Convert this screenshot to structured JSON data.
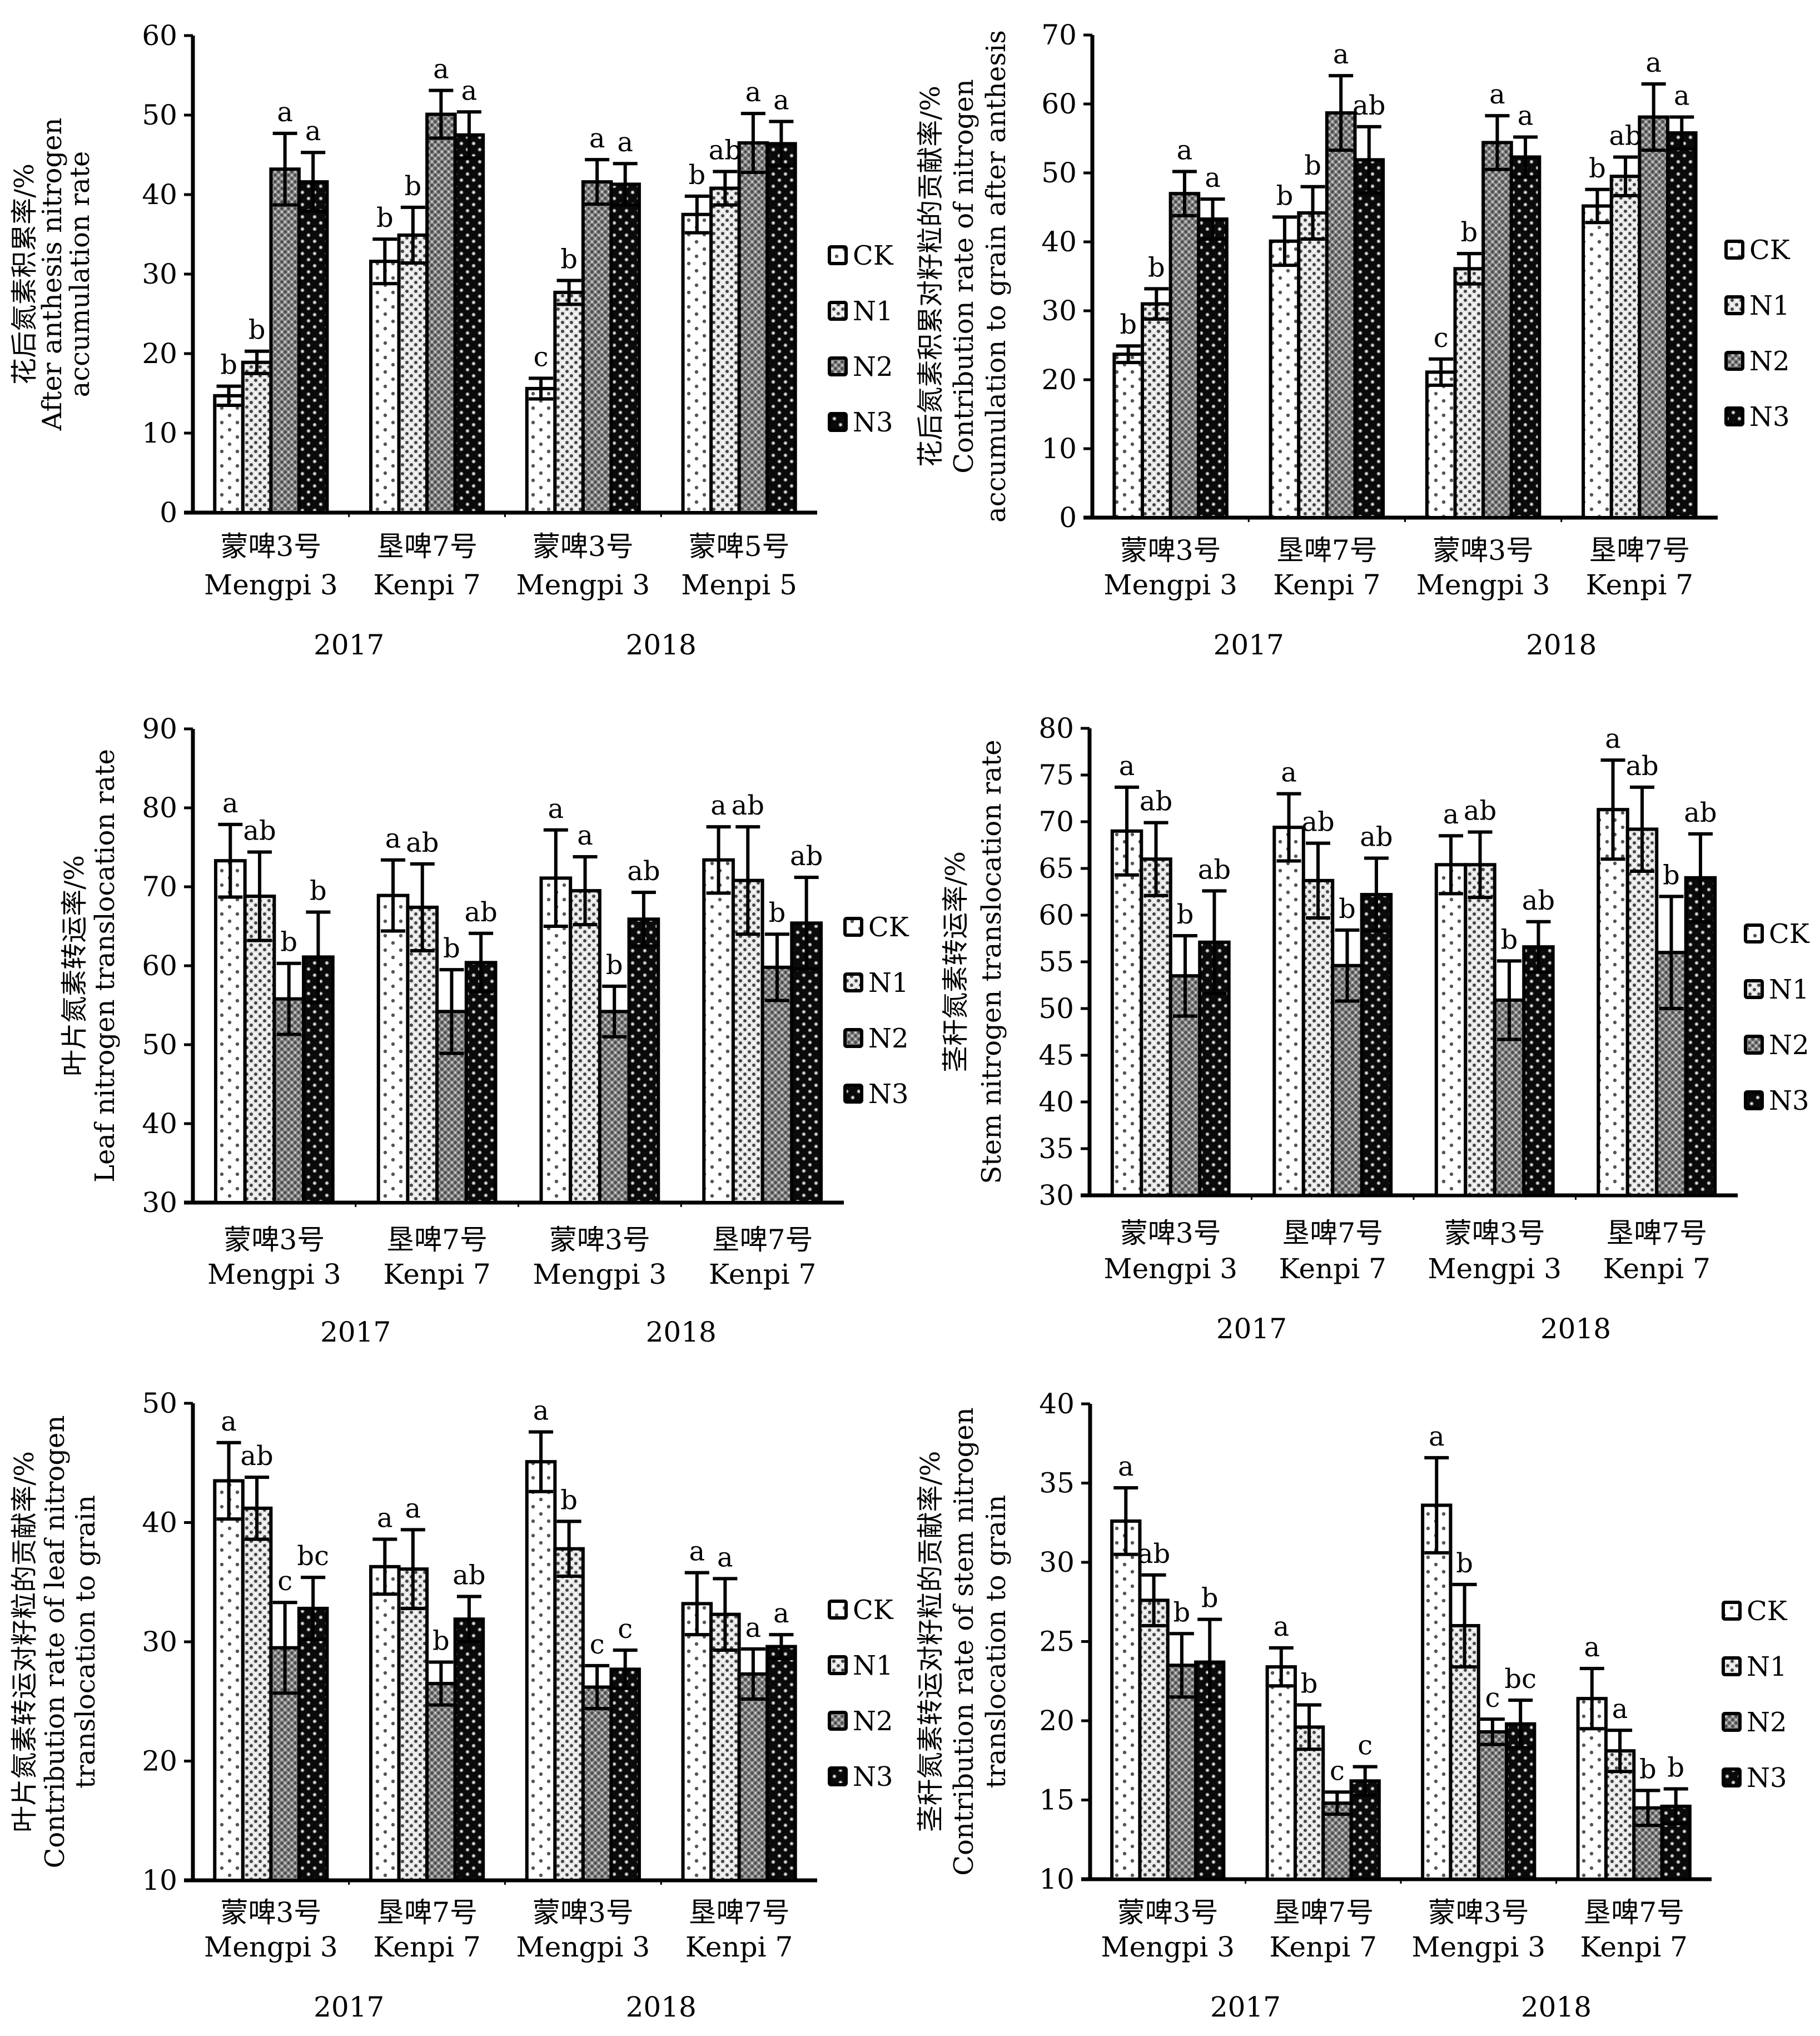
{
  "figure": {
    "legend_entries": [
      "CK",
      "N1",
      "N2",
      "N3"
    ],
    "years": [
      "2017",
      "2018"
    ]
  },
  "chart_data": [
    {
      "type": "bar",
      "id": "after-anthesis-accumulation",
      "ylabel": [
        "花后氮素积累率/%",
        "After anthesis nitrogen",
        "accumulation rate"
      ],
      "ylim": [
        0,
        60
      ],
      "yticks": [
        0,
        10,
        20,
        30,
        40,
        50,
        60
      ],
      "categories": [
        {
          "cn": "蒙啤3号",
          "en": "Mengpi 3",
          "year": "2017"
        },
        {
          "cn": "垦啤7号",
          "en": "Kenpi 7",
          "year": "2017"
        },
        {
          "cn": "蒙啤3号",
          "en": "Mengpi 3",
          "year": "2018"
        },
        {
          "cn": "蒙啤5号",
          "en": "Menpi 5",
          "year": "2018"
        }
      ],
      "series": [
        {
          "name": "CK",
          "values": [
            14.7,
            31.6,
            15.6,
            37.5
          ],
          "errors": [
            1.2,
            2.8,
            1.3,
            2.3
          ],
          "sig": [
            "b",
            "b",
            "c",
            "b"
          ]
        },
        {
          "name": "N1",
          "values": [
            18.9,
            34.9,
            27.7,
            40.8
          ],
          "errors": [
            1.4,
            3.5,
            1.5,
            2.1
          ],
          "sig": [
            "b",
            "b",
            "b",
            "ab"
          ]
        },
        {
          "name": "N2",
          "values": [
            43.2,
            50.1,
            41.6,
            46.5
          ],
          "errors": [
            4.5,
            3.0,
            2.8,
            3.7
          ],
          "sig": [
            "a",
            "a",
            "a",
            "a"
          ]
        },
        {
          "name": "N3",
          "values": [
            41.6,
            47.5,
            41.3,
            46.4
          ],
          "errors": [
            3.7,
            2.9,
            2.6,
            2.8
          ],
          "sig": [
            "a",
            "a",
            "a",
            "a"
          ]
        }
      ],
      "legend_position": "right"
    },
    {
      "type": "bar",
      "id": "after-anthesis-contribution",
      "ylabel": [
        "花后氮素积累对籽粒的贡献率/%",
        "Contribution rate of nitrogen",
        "accumulation to grain after anthesis"
      ],
      "ylim": [
        0,
        70
      ],
      "yticks": [
        0,
        10,
        20,
        30,
        40,
        50,
        60,
        70
      ],
      "categories": [
        {
          "cn": "蒙啤3号",
          "en": "Mengpi 3",
          "year": "2017"
        },
        {
          "cn": "垦啤7号",
          "en": "Kenpi 7",
          "year": "2017"
        },
        {
          "cn": "蒙啤3号",
          "en": "Mengpi 3",
          "year": "2018"
        },
        {
          "cn": "垦啤7号",
          "en": "Kenpi 7",
          "year": "2018"
        }
      ],
      "series": [
        {
          "name": "CK",
          "values": [
            23.7,
            40.1,
            21.1,
            45.2
          ],
          "errors": [
            1.2,
            3.5,
            1.9,
            2.4
          ],
          "sig": [
            "b",
            "b",
            "c",
            "b"
          ]
        },
        {
          "name": "N1",
          "values": [
            31.0,
            44.2,
            36.1,
            49.5
          ],
          "errors": [
            2.2,
            3.8,
            2.2,
            2.8
          ],
          "sig": [
            "b",
            "b",
            "b",
            "ab"
          ]
        },
        {
          "name": "N2",
          "values": [
            47.0,
            58.7,
            54.4,
            58.1
          ],
          "errors": [
            3.2,
            5.4,
            3.9,
            4.8
          ],
          "sig": [
            "a",
            "a",
            "a",
            "a"
          ]
        },
        {
          "name": "N3",
          "values": [
            43.3,
            51.9,
            52.3,
            55.8
          ],
          "errors": [
            2.9,
            4.8,
            2.9,
            2.3
          ],
          "sig": [
            "a",
            "ab",
            "a",
            "a"
          ]
        }
      ],
      "legend_position": "right"
    },
    {
      "type": "bar",
      "id": "leaf-translocation",
      "ylabel": [
        "叶片氮素转运率/%",
        "Leaf nitrogen translocation rate"
      ],
      "ylim": [
        30,
        90
      ],
      "yticks": [
        30,
        40,
        50,
        60,
        70,
        80,
        90
      ],
      "categories": [
        {
          "cn": "蒙啤3号",
          "en": "Mengpi 3",
          "year": "2017"
        },
        {
          "cn": "垦啤7号",
          "en": "Kenpi 7",
          "year": "2017"
        },
        {
          "cn": "蒙啤3号",
          "en": "Mengpi 3",
          "year": "2018"
        },
        {
          "cn": "垦啤7号",
          "en": "Kenpi 7",
          "year": "2018"
        }
      ],
      "series": [
        {
          "name": "CK",
          "values": [
            73.3,
            68.9,
            71.1,
            73.4
          ],
          "errors": [
            4.6,
            4.5,
            6.1,
            4.2
          ],
          "sig": [
            "a",
            "a",
            "a",
            "a"
          ]
        },
        {
          "name": "N1",
          "values": [
            68.8,
            67.4,
            69.5,
            70.8
          ],
          "errors": [
            5.6,
            5.5,
            4.3,
            6.8
          ],
          "sig": [
            "ab",
            "ab",
            "a",
            "ab"
          ]
        },
        {
          "name": "N2",
          "values": [
            55.8,
            54.2,
            54.2,
            59.8
          ],
          "errors": [
            4.5,
            5.3,
            3.2,
            4.2
          ],
          "sig": [
            "b",
            "b",
            "b",
            "b"
          ]
        },
        {
          "name": "N3",
          "values": [
            61.1,
            60.4,
            65.9,
            65.4
          ],
          "errors": [
            5.7,
            3.7,
            3.4,
            5.8
          ],
          "sig": [
            "b",
            "ab",
            "ab",
            "ab"
          ]
        }
      ],
      "legend_position": "right"
    },
    {
      "type": "bar",
      "id": "stem-translocation",
      "ylabel": [
        "茎秆氮素转运率/%",
        "Stem nitrogen translocation rate"
      ],
      "ylim": [
        30,
        80
      ],
      "yticks": [
        30,
        35,
        40,
        45,
        50,
        55,
        60,
        65,
        70,
        75,
        80
      ],
      "categories": [
        {
          "cn": "蒙啤3号",
          "en": "Mengpi 3",
          "year": "2017"
        },
        {
          "cn": "垦啤7号",
          "en": "Kenpi 7",
          "year": "2017"
        },
        {
          "cn": "蒙啤3号",
          "en": "Mengpi 3",
          "year": "2018"
        },
        {
          "cn": "垦啤7号",
          "en": "Kenpi 7",
          "year": "2018"
        }
      ],
      "series": [
        {
          "name": "CK",
          "values": [
            69.0,
            69.4,
            65.4,
            71.3
          ],
          "errors": [
            4.7,
            3.6,
            3.1,
            5.3
          ],
          "sig": [
            "a",
            "a",
            "a",
            "a"
          ]
        },
        {
          "name": "N1",
          "values": [
            66.0,
            63.7,
            65.4,
            69.2
          ],
          "errors": [
            3.9,
            4.0,
            3.5,
            4.5
          ],
          "sig": [
            "ab",
            "ab",
            "ab",
            "ab"
          ]
        },
        {
          "name": "N2",
          "values": [
            53.5,
            54.6,
            50.9,
            56.0
          ],
          "errors": [
            4.3,
            3.8,
            4.2,
            6.0
          ],
          "sig": [
            "b",
            "b",
            "b",
            "b"
          ]
        },
        {
          "name": "N3",
          "values": [
            57.1,
            62.2,
            56.6,
            64.0
          ],
          "errors": [
            5.5,
            3.9,
            2.7,
            4.7
          ],
          "sig": [
            "ab",
            "ab",
            "ab",
            "ab"
          ]
        }
      ],
      "legend_position": "right"
    },
    {
      "type": "bar",
      "id": "leaf-contribution",
      "ylabel": [
        "叶片氮素转运对籽粒的贡献率/%",
        "Contribution rate of leaf nitrogen",
        "translocation to grain"
      ],
      "ylim": [
        10,
        50
      ],
      "yticks": [
        10,
        20,
        30,
        40,
        50
      ],
      "categories": [
        {
          "cn": "蒙啤3号",
          "en": "Mengpi 3",
          "year": "2017"
        },
        {
          "cn": "垦啤7号",
          "en": "Kenpi 7",
          "year": "2017"
        },
        {
          "cn": "蒙啤3号",
          "en": "Mengpi 3",
          "year": "2018"
        },
        {
          "cn": "垦啤7号",
          "en": "Kenpi 7",
          "year": "2018"
        }
      ],
      "series": [
        {
          "name": "CK",
          "values": [
            43.5,
            36.3,
            45.1,
            33.2
          ],
          "errors": [
            3.2,
            2.3,
            2.5,
            2.6
          ],
          "sig": [
            "a",
            "a",
            "a",
            "a"
          ]
        },
        {
          "name": "N1",
          "values": [
            41.2,
            36.1,
            37.8,
            32.3
          ],
          "errors": [
            2.6,
            3.3,
            2.3,
            3.0
          ],
          "sig": [
            "ab",
            "a",
            "b",
            "a"
          ]
        },
        {
          "name": "N2",
          "values": [
            29.5,
            26.5,
            26.2,
            27.3
          ],
          "errors": [
            3.8,
            1.8,
            1.8,
            2.1
          ],
          "sig": [
            "c",
            "b",
            "c",
            "a"
          ]
        },
        {
          "name": "N3",
          "values": [
            32.8,
            31.9,
            27.7,
            29.6
          ],
          "errors": [
            2.6,
            1.9,
            1.6,
            1.0
          ],
          "sig": [
            "bc",
            "ab",
            "c",
            "a"
          ]
        }
      ],
      "legend_position": "right"
    },
    {
      "type": "bar",
      "id": "stem-contribution",
      "ylabel": [
        "茎秆氮素转运对籽粒的贡献率/%",
        "Contribution rate of stem nitrogen",
        "translocation to grain"
      ],
      "ylim": [
        10,
        40
      ],
      "yticks": [
        10,
        15,
        20,
        25,
        30,
        35,
        40
      ],
      "categories": [
        {
          "cn": "蒙啤3号",
          "en": "Mengpi 3",
          "year": "2017"
        },
        {
          "cn": "垦啤7号",
          "en": "Kenpi 7",
          "year": "2017"
        },
        {
          "cn": "蒙啤3号",
          "en": "Mengpi 3",
          "year": "2018"
        },
        {
          "cn": "垦啤7号",
          "en": "Kenpi 7",
          "year": "2018"
        }
      ],
      "series": [
        {
          "name": "CK",
          "values": [
            32.6,
            23.4,
            33.6,
            21.4
          ],
          "errors": [
            2.1,
            1.2,
            3.0,
            1.9
          ],
          "sig": [
            "a",
            "a",
            "a",
            "a"
          ]
        },
        {
          "name": "N1",
          "values": [
            27.6,
            19.6,
            26.0,
            18.1
          ],
          "errors": [
            1.6,
            1.4,
            2.6,
            1.3
          ],
          "sig": [
            "ab",
            "b",
            "b",
            "a"
          ]
        },
        {
          "name": "N2",
          "values": [
            23.5,
            14.8,
            19.3,
            14.5
          ],
          "errors": [
            2.0,
            0.7,
            0.8,
            1.1
          ],
          "sig": [
            "b",
            "c",
            "c",
            "b"
          ]
        },
        {
          "name": "N3",
          "values": [
            23.7,
            16.2,
            19.8,
            14.6
          ],
          "errors": [
            2.7,
            0.9,
            1.5,
            1.1
          ],
          "sig": [
            "b",
            "c",
            "bc",
            "b"
          ]
        }
      ],
      "legend_position": "right"
    }
  ]
}
